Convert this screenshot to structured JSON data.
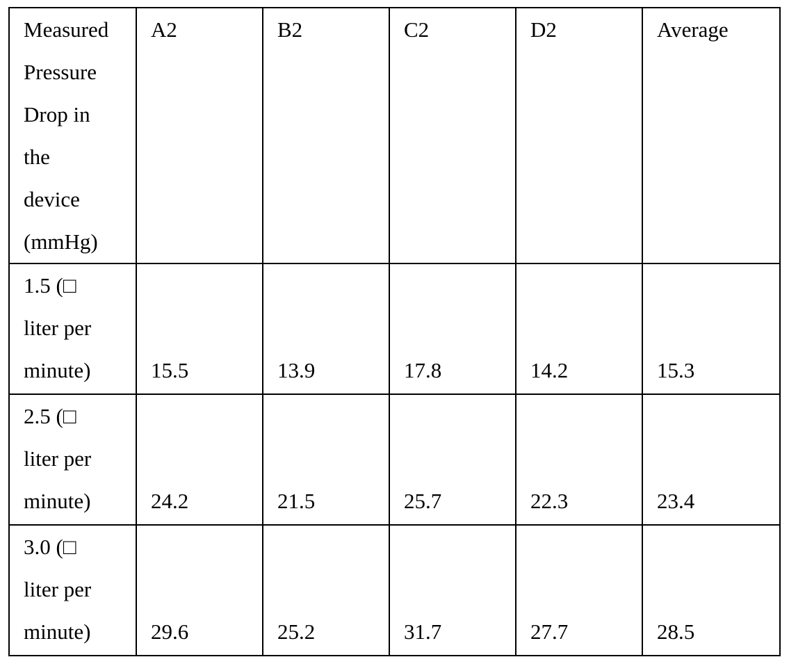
{
  "table": {
    "header": {
      "label": "Measured\nPressure\nDrop in\nthe\ndevice\n(mmHg)",
      "columns": [
        "A2",
        "B2",
        "C2",
        "D2",
        "Average"
      ]
    },
    "rows": [
      {
        "label": "1.5 (□\nliter per\nminute)",
        "values": [
          "15.5",
          "13.9",
          "17.8",
          "14.2",
          "15.3"
        ]
      },
      {
        "label": "2.5 (□\nliter per\nminute)",
        "values": [
          "24.2",
          "21.5",
          "25.7",
          "22.3",
          "23.4"
        ]
      },
      {
        "label": "3.0 (□\nliter per\nminute)",
        "values": [
          "29.6",
          "25.2",
          "31.7",
          "27.7",
          "28.5"
        ]
      }
    ]
  }
}
